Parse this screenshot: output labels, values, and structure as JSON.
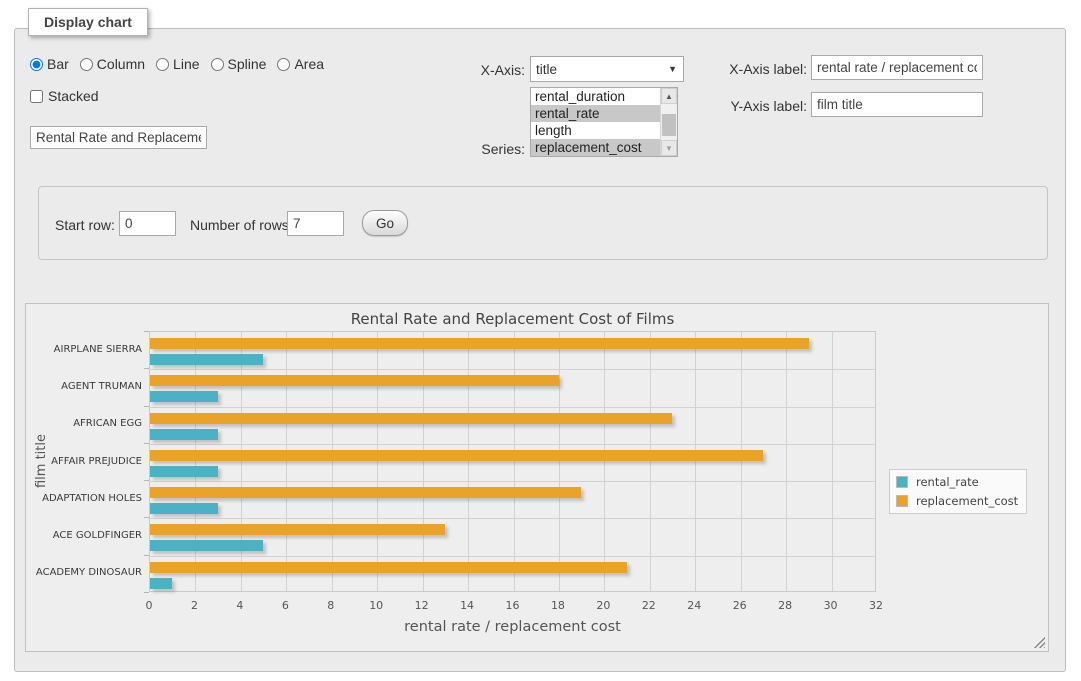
{
  "display_chart": {
    "legend": "Display chart",
    "chart_types": {
      "options": [
        "Bar",
        "Column",
        "Line",
        "Spline",
        "Area"
      ],
      "selected": "Bar"
    },
    "stacked": {
      "label": "Stacked",
      "checked": false
    },
    "title_input": {
      "value": "Rental Rate and Replacemer"
    },
    "x_axis": {
      "label": "X-Axis:",
      "selected_value": "title"
    },
    "series": {
      "label": "Series:",
      "options": [
        {
          "label": "rental_duration",
          "selected": false
        },
        {
          "label": "rental_rate",
          "selected": true
        },
        {
          "label": "length",
          "selected": false
        },
        {
          "label": "replacement_cost",
          "selected": true
        }
      ]
    },
    "x_axis_label": {
      "label": "X-Axis label:",
      "value": "rental rate / replacement cost"
    },
    "y_axis_label": {
      "label": "Y-Axis label:",
      "value": "film title"
    }
  },
  "row_controls": {
    "start_row_label": "Start row:",
    "start_row_value": "0",
    "num_rows_label": "Number of rows:",
    "num_rows_value": "7",
    "go_label": "Go"
  },
  "chart_data": {
    "type": "bar",
    "orientation": "horizontal",
    "title": "Rental Rate and Replacement Cost of Films",
    "categories": [
      "AIRPLANE SIERRA",
      "AGENT TRUMAN",
      "AFRICAN EGG",
      "AFFAIR PREJUDICE",
      "ADAPTATION HOLES",
      "ACE GOLDFINGER",
      "ACADEMY DINOSAUR"
    ],
    "series": [
      {
        "name": "rental_rate",
        "color": "#4bb2c5",
        "values": [
          4.99,
          2.99,
          2.99,
          2.99,
          2.99,
          4.99,
          0.99
        ]
      },
      {
        "name": "replacement_cost",
        "color": "#EAA228",
        "values": [
          28.99,
          17.99,
          22.99,
          26.99,
          18.99,
          12.99,
          20.99
        ]
      }
    ],
    "xlabel": "rental rate / replacement cost",
    "ylabel": "film title",
    "xlim": [
      0,
      32
    ],
    "xticks": [
      0,
      2,
      4,
      6,
      8,
      10,
      12,
      14,
      16,
      18,
      20,
      22,
      24,
      26,
      28,
      30,
      32
    ],
    "grid": true,
    "legend_position": "right"
  }
}
